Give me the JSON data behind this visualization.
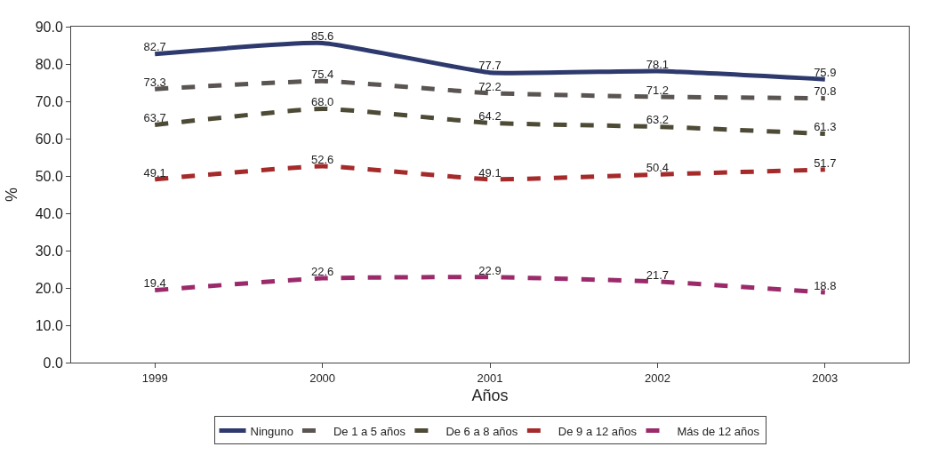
{
  "chart_data": {
    "type": "line",
    "xlabel": "Años",
    "ylabel": "%",
    "categories": [
      "1999",
      "2000",
      "2001",
      "2002",
      "2003"
    ],
    "series": [
      {
        "name": "Ninguno",
        "color": "#2e3a6e",
        "line_style": "solid",
        "values": [
          82.7,
          85.6,
          77.7,
          78.1,
          75.9
        ],
        "value_labels": [
          "82.7",
          "85.6",
          "77.7",
          "78.1",
          "75.9"
        ]
      },
      {
        "name": "De 1 a 5 años",
        "color": "#5a5552",
        "line_style": "dashed",
        "values": [
          73.3,
          75.4,
          72.2,
          71.2,
          70.8
        ],
        "value_labels": [
          "73.3",
          "75.4",
          "72.2",
          "71.2",
          "70.8"
        ]
      },
      {
        "name": "De 6 a 8 años",
        "color": "#4d4a35",
        "line_style": "dashed",
        "values": [
          63.7,
          68.0,
          64.2,
          63.2,
          61.3
        ],
        "value_labels": [
          "63.7",
          "68.0",
          "64.2",
          "63.2",
          "61.3"
        ]
      },
      {
        "name": "De 9 a 12 años",
        "color": "#a52a2a",
        "line_style": "dashed",
        "values": [
          49.1,
          52.6,
          49.1,
          50.4,
          51.7
        ],
        "value_labels": [
          "49.1",
          "52.6",
          "49.1",
          "50.4",
          "51.7"
        ]
      },
      {
        "name": "Más de 12 años",
        "color": "#9b2a6b",
        "line_style": "dashed",
        "values": [
          19.4,
          22.6,
          22.9,
          21.7,
          18.8
        ],
        "value_labels": [
          "19.4",
          "22.6",
          "22.9",
          "21.7",
          "18.8"
        ]
      }
    ],
    "ylim": [
      0,
      90
    ],
    "yticks": [
      {
        "value": 0,
        "label": "0.0"
      },
      {
        "value": 10,
        "label": "10.0"
      },
      {
        "value": 20,
        "label": "20.0"
      },
      {
        "value": 30,
        "label": "30.0"
      },
      {
        "value": 40,
        "label": "40.0"
      },
      {
        "value": 50,
        "label": "50.0"
      },
      {
        "value": 60,
        "label": "60.0"
      },
      {
        "value": 70,
        "label": "70.0"
      },
      {
        "value": 80,
        "label": "80.0"
      },
      {
        "value": 90,
        "label": "90.0"
      }
    ],
    "legend": "bottom",
    "marker": "none"
  }
}
